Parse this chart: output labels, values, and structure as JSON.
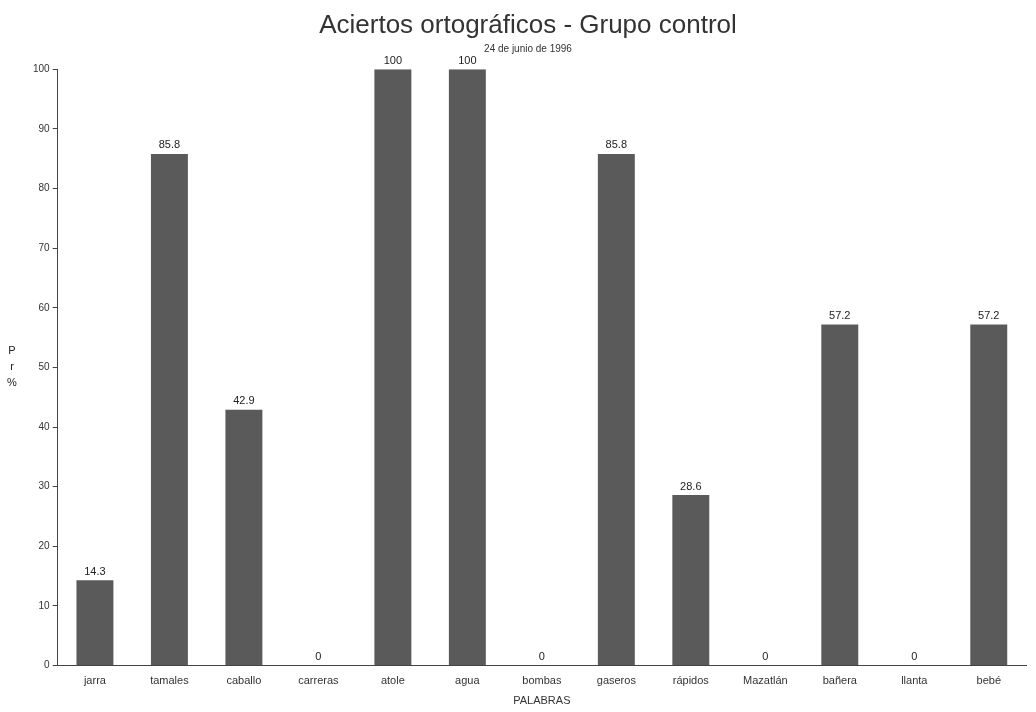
{
  "chart_data": {
    "type": "bar",
    "title": "Aciertos ortográficos - Grupo control",
    "subtitle": "24 de junio de 1996",
    "xlabel": "PALABRAS",
    "ylabel": "P r %",
    "categories": [
      "jarra",
      "tamales",
      "caballo",
      "carreras",
      "atole",
      "agua",
      "bombas",
      "gaseros",
      "rápidos",
      "Mazatlán",
      "bañera",
      "llanta",
      "bebé"
    ],
    "values": [
      14.3,
      85.8,
      42.9,
      0,
      100,
      100,
      0,
      85.8,
      28.6,
      0,
      57.2,
      0,
      57.2
    ],
    "color": "#5a5a5a",
    "ylim": [
      0,
      100
    ],
    "yticks": [
      0,
      10,
      20,
      30,
      40,
      50,
      60,
      70,
      80,
      90,
      100
    ],
    "grid": false,
    "legend": false,
    "data_labels": true
  }
}
